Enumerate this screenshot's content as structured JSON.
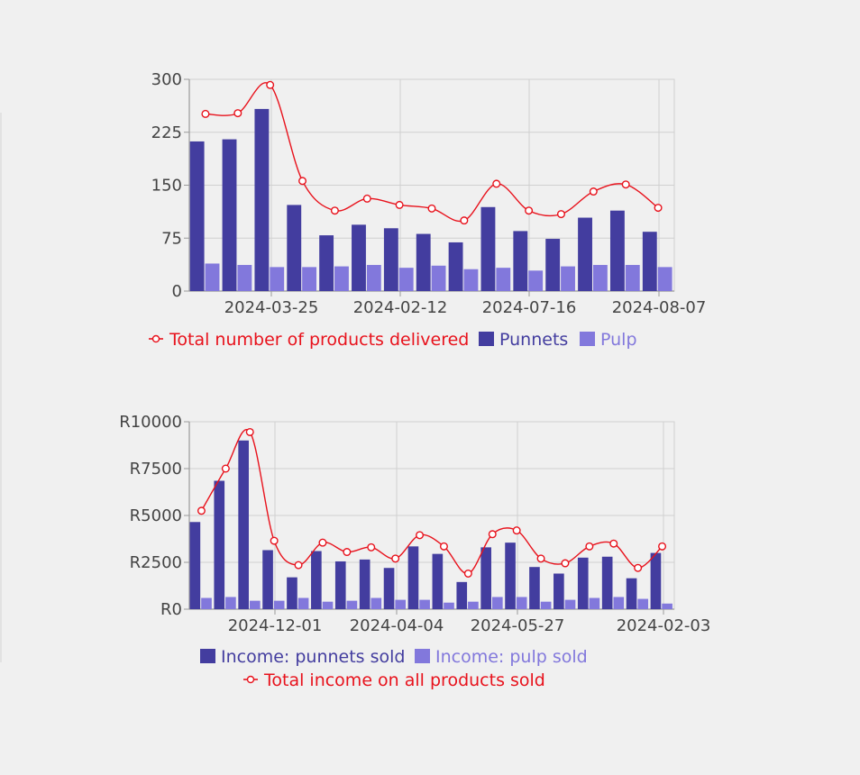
{
  "colors": {
    "punnets": "#433d9f",
    "pulp": "#8278dc",
    "total_line": "#e8121c",
    "grid": "#d0d0d0",
    "axis": "#9a9a9a"
  },
  "chart_data": [
    {
      "type": "bar",
      "overlay": "line",
      "x_tick_labels": [
        "2024-03-25",
        "2024-02-12",
        "2024-07-16",
        "2024-08-07"
      ],
      "y_tick_labels": [
        "0",
        "75",
        "150",
        "225",
        "300"
      ],
      "ylim": [
        0,
        300
      ],
      "grid": true,
      "legend_position": "bottom",
      "series": [
        {
          "name": "Punnets",
          "kind": "bar",
          "color": "#433d9f",
          "values": [
            212,
            215,
            258,
            122,
            79,
            94,
            89,
            81,
            69,
            119,
            85,
            74,
            104,
            114,
            84
          ]
        },
        {
          "name": "Pulp",
          "kind": "bar",
          "color": "#8278dc",
          "values": [
            39,
            37,
            34,
            34,
            35,
            37,
            33,
            36,
            31,
            33,
            29,
            35,
            37,
            37,
            34
          ]
        },
        {
          "name": "Total number of products delivered",
          "kind": "line",
          "color": "#e8121c",
          "values": [
            251,
            252,
            292,
            156,
            114,
            131,
            122,
            117,
            100,
            152,
            114,
            109,
            141,
            151,
            118
          ]
        }
      ],
      "legend": [
        {
          "label": "Total number of products delivered",
          "kind": "line",
          "color": "#e8121c"
        },
        {
          "label": "Punnets",
          "kind": "bar",
          "color": "#433d9f"
        },
        {
          "label": "Pulp",
          "kind": "bar",
          "color": "#8278dc"
        }
      ]
    },
    {
      "type": "bar",
      "overlay": "line",
      "x_tick_labels": [
        "2024-12-01",
        "2024-04-04",
        "2024-05-27",
        "2024-02-03"
      ],
      "y_tick_labels": [
        "R0",
        "R2500",
        "R5000",
        "R7500",
        "R10000"
      ],
      "ylim": [
        0,
        10000
      ],
      "grid": true,
      "legend_position": "bottom",
      "series": [
        {
          "name": "Income: punnets sold",
          "kind": "bar",
          "color": "#433d9f",
          "values": [
            4650,
            6850,
            9000,
            3150,
            1700,
            3100,
            2550,
            2650,
            2200,
            3350,
            2950,
            1450,
            3300,
            3550,
            2250,
            1900,
            2750,
            2800,
            1650,
            3000
          ]
        },
        {
          "name": "Income: pulp sold",
          "kind": "bar",
          "color": "#8278dc",
          "values": [
            600,
            650,
            450,
            450,
            600,
            400,
            450,
            600,
            500,
            500,
            350,
            400,
            650,
            650,
            400,
            500,
            600,
            650,
            550,
            300
          ]
        },
        {
          "name": "Total income on all products sold",
          "kind": "line",
          "color": "#e8121c",
          "values": [
            5250,
            7500,
            9450,
            3650,
            2350,
            3550,
            3050,
            3300,
            2700,
            3950,
            3350,
            1900,
            4000,
            4200,
            2700,
            2450,
            3350,
            3500,
            2200,
            3350
          ]
        }
      ],
      "legend": [
        {
          "label": "Income: punnets sold",
          "kind": "bar",
          "color": "#433d9f"
        },
        {
          "label": "Income: pulp sold",
          "kind": "bar",
          "color": "#8278dc"
        },
        {
          "label": "Total income on all products sold",
          "kind": "line",
          "color": "#e8121c"
        }
      ]
    }
  ]
}
